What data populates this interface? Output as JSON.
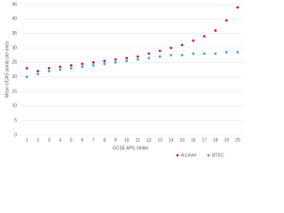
{
  "chart_data": {
    "type": "scatter",
    "x_label": "GCSE APS Vintile",
    "y_label": "Mean UCAS points per entry",
    "categories": [
      "1",
      "2",
      "3",
      "4",
      "5",
      "6",
      "7",
      "8",
      "9",
      "10",
      "11",
      "12",
      "13",
      "14",
      "15",
      "16",
      "17",
      "18",
      "19",
      "20"
    ],
    "series": [
      {
        "name": "A-Level",
        "color": "#d6124f",
        "values": [
          23,
          22,
          23,
          23.5,
          24,
          24.5,
          25,
          25.5,
          26,
          26.5,
          27,
          28,
          29,
          30,
          31,
          32.5,
          34,
          36,
          39.5,
          44
        ]
      },
      {
        "name": "BTEC",
        "color": "#2fb0c6",
        "values": [
          20,
          21,
          22,
          22.5,
          23,
          23.5,
          24,
          24.5,
          25,
          25.5,
          26,
          26.5,
          27,
          27.5,
          27.5,
          28,
          28,
          28,
          28.5,
          28.5
        ]
      }
    ],
    "ylim": [
      0,
      45
    ],
    "yticks": [
      0,
      5,
      10,
      15,
      20,
      25,
      30,
      35,
      40,
      45
    ],
    "grid": true,
    "legend": "bottom-right"
  }
}
